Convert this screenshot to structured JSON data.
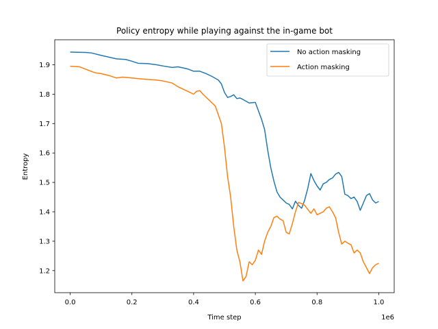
{
  "chart_data": {
    "type": "line",
    "title": "Policy entropy while playing against the in-game bot",
    "xlabel": "Time step",
    "ylabel": "Entropy",
    "x_offset_label": "1e6",
    "xlim": [
      -0.05,
      1.05
    ],
    "ylim": [
      1.125,
      1.985
    ],
    "xticks": [
      0.0,
      0.2,
      0.4,
      0.6,
      0.8,
      1.0
    ],
    "xtick_labels": [
      "0.0",
      "0.2",
      "0.4",
      "0.6",
      "0.8",
      "1.0"
    ],
    "yticks": [
      1.2,
      1.3,
      1.4,
      1.5,
      1.6,
      1.7,
      1.8,
      1.9
    ],
    "ytick_labels": [
      "1.2",
      "1.3",
      "1.4",
      "1.5",
      "1.6",
      "1.7",
      "1.8",
      "1.9"
    ],
    "grid": false,
    "legend_position": "top-right",
    "colors": {
      "No action masking": "#1f77b4",
      "Action masking": "#ff7f0e"
    },
    "series": [
      {
        "name": "No action masking",
        "x": [
          0.0,
          0.05,
          0.07,
          0.1,
          0.15,
          0.18,
          0.2,
          0.22,
          0.25,
          0.28,
          0.3,
          0.33,
          0.35,
          0.38,
          0.4,
          0.42,
          0.44,
          0.46,
          0.48,
          0.49,
          0.5,
          0.51,
          0.52,
          0.53,
          0.54,
          0.55,
          0.56,
          0.58,
          0.6,
          0.62,
          0.63,
          0.64,
          0.65,
          0.66,
          0.67,
          0.68,
          0.69,
          0.7,
          0.71,
          0.72,
          0.73,
          0.74,
          0.75,
          0.76,
          0.77,
          0.78,
          0.79,
          0.8,
          0.81,
          0.82,
          0.83,
          0.84,
          0.85,
          0.86,
          0.87,
          0.88,
          0.89,
          0.9,
          0.91,
          0.92,
          0.93,
          0.94,
          0.95,
          0.96,
          0.97,
          0.98,
          0.99,
          1.0
        ],
        "y": [
          1.943,
          1.942,
          1.94,
          1.932,
          1.92,
          1.918,
          1.912,
          1.905,
          1.904,
          1.9,
          1.896,
          1.891,
          1.893,
          1.886,
          1.878,
          1.878,
          1.87,
          1.86,
          1.848,
          1.835,
          1.806,
          1.789,
          1.792,
          1.798,
          1.785,
          1.787,
          1.782,
          1.77,
          1.772,
          1.715,
          1.68,
          1.61,
          1.55,
          1.505,
          1.468,
          1.45,
          1.44,
          1.43,
          1.425,
          1.41,
          1.436,
          1.422,
          1.412,
          1.44,
          1.48,
          1.53,
          1.506,
          1.488,
          1.474,
          1.495,
          1.5,
          1.51,
          1.515,
          1.528,
          1.534,
          1.52,
          1.46,
          1.455,
          1.445,
          1.45,
          1.435,
          1.405,
          1.43,
          1.455,
          1.462,
          1.44,
          1.43,
          1.435
        ]
      },
      {
        "name": "Action masking",
        "x": [
          0.0,
          0.03,
          0.05,
          0.08,
          0.1,
          0.13,
          0.15,
          0.17,
          0.2,
          0.23,
          0.25,
          0.28,
          0.3,
          0.33,
          0.35,
          0.37,
          0.38,
          0.4,
          0.41,
          0.42,
          0.43,
          0.45,
          0.47,
          0.48,
          0.49,
          0.5,
          0.51,
          0.52,
          0.53,
          0.54,
          0.55,
          0.56,
          0.57,
          0.58,
          0.59,
          0.6,
          0.61,
          0.62,
          0.63,
          0.64,
          0.65,
          0.66,
          0.67,
          0.68,
          0.69,
          0.7,
          0.71,
          0.72,
          0.73,
          0.74,
          0.75,
          0.76,
          0.77,
          0.78,
          0.79,
          0.8,
          0.81,
          0.82,
          0.83,
          0.84,
          0.85,
          0.86,
          0.87,
          0.88,
          0.89,
          0.9,
          0.91,
          0.92,
          0.93,
          0.94,
          0.95,
          0.96,
          0.97,
          0.98,
          0.99,
          1.0
        ],
        "y": [
          1.895,
          1.893,
          1.885,
          1.873,
          1.87,
          1.862,
          1.855,
          1.858,
          1.855,
          1.852,
          1.85,
          1.848,
          1.845,
          1.838,
          1.825,
          1.815,
          1.81,
          1.8,
          1.81,
          1.812,
          1.8,
          1.78,
          1.76,
          1.73,
          1.7,
          1.62,
          1.52,
          1.45,
          1.35,
          1.27,
          1.23,
          1.165,
          1.18,
          1.23,
          1.22,
          1.235,
          1.27,
          1.255,
          1.3,
          1.33,
          1.35,
          1.38,
          1.385,
          1.375,
          1.37,
          1.33,
          1.325,
          1.36,
          1.4,
          1.432,
          1.428,
          1.422,
          1.408,
          1.395,
          1.41,
          1.39,
          1.395,
          1.4,
          1.412,
          1.417,
          1.4,
          1.38,
          1.33,
          1.29,
          1.3,
          1.293,
          1.288,
          1.26,
          1.27,
          1.26,
          1.23,
          1.21,
          1.19,
          1.21,
          1.22,
          1.225
        ]
      }
    ]
  }
}
